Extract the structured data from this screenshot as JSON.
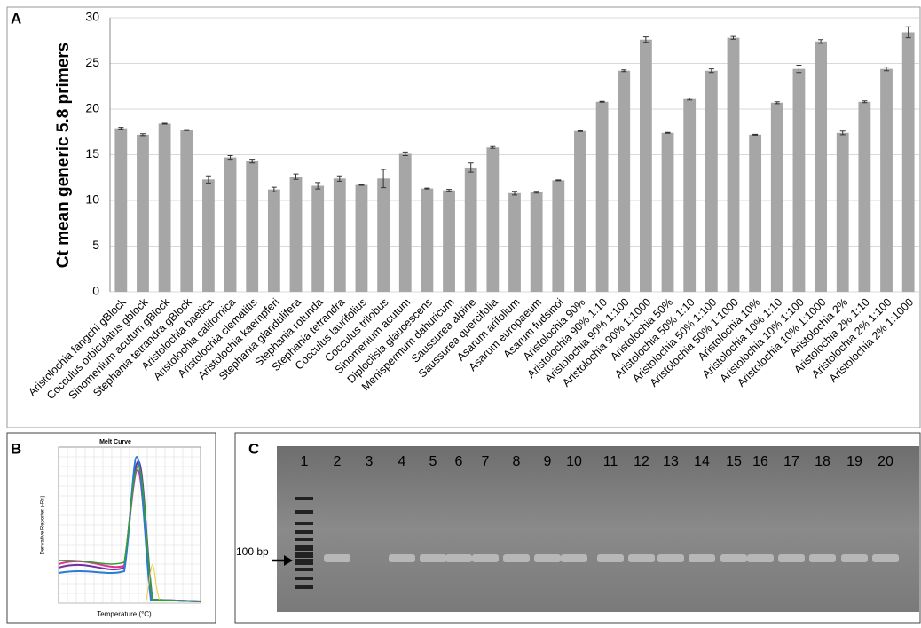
{
  "chart_data": {
    "type": "bar",
    "y_label": "Ct mean generic 5.8 primers",
    "categories": [
      "Aristolochia fangchi gBlock",
      "Cocculus orbiculatus gblock",
      "Sinomenium acutum gBlock",
      "Stephania tetrandra gBlock",
      "Aristolochia baetica",
      "Aristolochia californica",
      "Aristolochia clematitis",
      "Aristolochia kaempferi",
      "Stephania  glandulifera",
      "Stephania  rotunda",
      "Stephania tetrandra",
      "Cocculus  laurifolius",
      "Cocculus trilobus",
      "Sinomenium acutum",
      "Diploclisia glaucescens",
      "Menispermum dahuricum",
      "Saussurea alpine",
      "Saussurea quercifolia",
      "Asarum arifolium",
      "Asarum europaeum",
      "Asarum fudsinoi",
      "Aristolochia 90%",
      "Aristolochia 90% 1:10",
      "Aristolochia 90% 1:100",
      "Aristolochia 90% 1:1000",
      "Aristolochia 50%",
      "Aristolochia 50% 1:10",
      "Aristolochia 50% 1:100",
      "Aristolochia 50% 1:1000",
      "Aristolochia 10%",
      "Aristolochia 10% 1:10",
      "Aristolochia 10% 1:100",
      "Aristolochia 10% 1:1000",
      "Aristolochia 2%",
      "Aristolochia 2% 1:10",
      "Aristolochia 2% 1:100",
      "Aristolochia 2% 1:1000"
    ],
    "values": [
      17.9,
      17.2,
      18.4,
      17.7,
      12.3,
      14.7,
      14.3,
      11.2,
      12.6,
      11.6,
      12.4,
      11.7,
      12.4,
      15.1,
      11.3,
      11.1,
      13.6,
      15.8,
      10.8,
      10.9,
      12.2,
      17.6,
      20.8,
      24.2,
      27.6,
      17.4,
      21.1,
      24.2,
      27.8,
      17.2,
      20.7,
      24.4,
      27.4,
      17.4,
      20.8,
      24.4,
      28.4
    ],
    "errors": [
      0.1,
      0.1,
      0.05,
      0.05,
      0.4,
      0.2,
      0.2,
      0.25,
      0.3,
      0.35,
      0.3,
      0.05,
      1.0,
      0.2,
      0.05,
      0.1,
      0.5,
      0.1,
      0.2,
      0.1,
      0.05,
      0.05,
      0.05,
      0.1,
      0.3,
      0.05,
      0.1,
      0.2,
      0.15,
      0.05,
      0.1,
      0.4,
      0.2,
      0.2,
      0.1,
      0.2,
      0.6
    ],
    "color": "#a6a6a6",
    "ylim": [
      0,
      30
    ],
    "yticks": [
      0,
      5,
      10,
      15,
      20,
      25,
      30
    ],
    "grid": true
  },
  "panel_labels": [
    "A",
    "B",
    "C"
  ],
  "melt_curve": {
    "title": "Melt Curve",
    "x_label": "Temperature (°C)",
    "y_label": "Derivative Reporter (-Rn)"
  },
  "gel": {
    "lane_labels": [
      "1",
      "2",
      "3",
      "4",
      "5",
      "6",
      "7",
      "8",
      "9",
      "10",
      "11",
      "12",
      "13",
      "14",
      "15",
      "16",
      "17",
      "18",
      "19",
      "20"
    ],
    "marker_label": "100 bp"
  }
}
